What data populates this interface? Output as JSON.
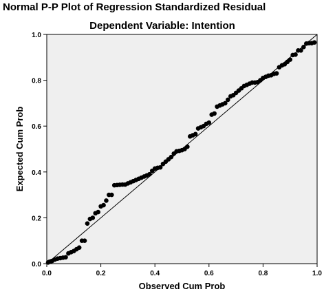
{
  "chart_data": {
    "type": "scatter",
    "title": "Normal P-P Plot of Regression Standardized Residual",
    "subtitle": "Dependent Variable: Intention",
    "xlabel": "Observed Cum Prob",
    "ylabel": "Expected Cum Prob",
    "xlim": [
      0,
      1
    ],
    "ylim": [
      0,
      1
    ],
    "xticks": [
      "0.0",
      "0.2",
      "0.4",
      "0.6",
      "0.8",
      "1.0"
    ],
    "yticks": [
      "0.0",
      "0.2",
      "0.4",
      "0.6",
      "0.8",
      "1.0"
    ],
    "reference_line": [
      [
        0,
        0
      ],
      [
        1,
        1
      ]
    ],
    "colors": {
      "plot_bg": "#efefef",
      "points": "#000000",
      "line": "#000000"
    },
    "points": [
      [
        0.005,
        0.005
      ],
      [
        0.01,
        0.008
      ],
      [
        0.015,
        0.01
      ],
      [
        0.02,
        0.012
      ],
      [
        0.03,
        0.018
      ],
      [
        0.04,
        0.022
      ],
      [
        0.05,
        0.024
      ],
      [
        0.06,
        0.026
      ],
      [
        0.07,
        0.028
      ],
      [
        0.08,
        0.045
      ],
      [
        0.09,
        0.05
      ],
      [
        0.1,
        0.055
      ],
      [
        0.11,
        0.063
      ],
      [
        0.12,
        0.07
      ],
      [
        0.13,
        0.1
      ],
      [
        0.14,
        0.1
      ],
      [
        0.15,
        0.175
      ],
      [
        0.16,
        0.195
      ],
      [
        0.17,
        0.2
      ],
      [
        0.18,
        0.22
      ],
      [
        0.19,
        0.225
      ],
      [
        0.2,
        0.25
      ],
      [
        0.21,
        0.255
      ],
      [
        0.22,
        0.275
      ],
      [
        0.23,
        0.3
      ],
      [
        0.24,
        0.3
      ],
      [
        0.25,
        0.342
      ],
      [
        0.26,
        0.343
      ],
      [
        0.27,
        0.344
      ],
      [
        0.28,
        0.345
      ],
      [
        0.29,
        0.345
      ],
      [
        0.3,
        0.35
      ],
      [
        0.31,
        0.355
      ],
      [
        0.32,
        0.36
      ],
      [
        0.33,
        0.365
      ],
      [
        0.34,
        0.37
      ],
      [
        0.35,
        0.375
      ],
      [
        0.36,
        0.38
      ],
      [
        0.37,
        0.385
      ],
      [
        0.38,
        0.39
      ],
      [
        0.39,
        0.405
      ],
      [
        0.4,
        0.415
      ],
      [
        0.41,
        0.418
      ],
      [
        0.42,
        0.42
      ],
      [
        0.43,
        0.435
      ],
      [
        0.44,
        0.445
      ],
      [
        0.45,
        0.455
      ],
      [
        0.46,
        0.465
      ],
      [
        0.47,
        0.48
      ],
      [
        0.48,
        0.49
      ],
      [
        0.49,
        0.492
      ],
      [
        0.5,
        0.495
      ],
      [
        0.51,
        0.5
      ],
      [
        0.52,
        0.51
      ],
      [
        0.53,
        0.555
      ],
      [
        0.54,
        0.56
      ],
      [
        0.55,
        0.565
      ],
      [
        0.56,
        0.59
      ],
      [
        0.57,
        0.595
      ],
      [
        0.58,
        0.6
      ],
      [
        0.59,
        0.61
      ],
      [
        0.6,
        0.615
      ],
      [
        0.61,
        0.65
      ],
      [
        0.62,
        0.655
      ],
      [
        0.63,
        0.685
      ],
      [
        0.64,
        0.69
      ],
      [
        0.65,
        0.695
      ],
      [
        0.66,
        0.7
      ],
      [
        0.67,
        0.715
      ],
      [
        0.68,
        0.73
      ],
      [
        0.69,
        0.735
      ],
      [
        0.7,
        0.745
      ],
      [
        0.71,
        0.755
      ],
      [
        0.72,
        0.765
      ],
      [
        0.73,
        0.775
      ],
      [
        0.74,
        0.78
      ],
      [
        0.75,
        0.785
      ],
      [
        0.76,
        0.79
      ],
      [
        0.77,
        0.79
      ],
      [
        0.78,
        0.792
      ],
      [
        0.79,
        0.8
      ],
      [
        0.8,
        0.81
      ],
      [
        0.81,
        0.815
      ],
      [
        0.82,
        0.82
      ],
      [
        0.83,
        0.822
      ],
      [
        0.84,
        0.828
      ],
      [
        0.85,
        0.83
      ],
      [
        0.86,
        0.857
      ],
      [
        0.87,
        0.865
      ],
      [
        0.88,
        0.87
      ],
      [
        0.89,
        0.88
      ],
      [
        0.9,
        0.89
      ],
      [
        0.91,
        0.91
      ],
      [
        0.92,
        0.912
      ],
      [
        0.93,
        0.93
      ],
      [
        0.94,
        0.93
      ],
      [
        0.95,
        0.945
      ],
      [
        0.96,
        0.96
      ],
      [
        0.97,
        0.962
      ],
      [
        0.98,
        0.962
      ],
      [
        0.99,
        0.965
      ]
    ]
  }
}
